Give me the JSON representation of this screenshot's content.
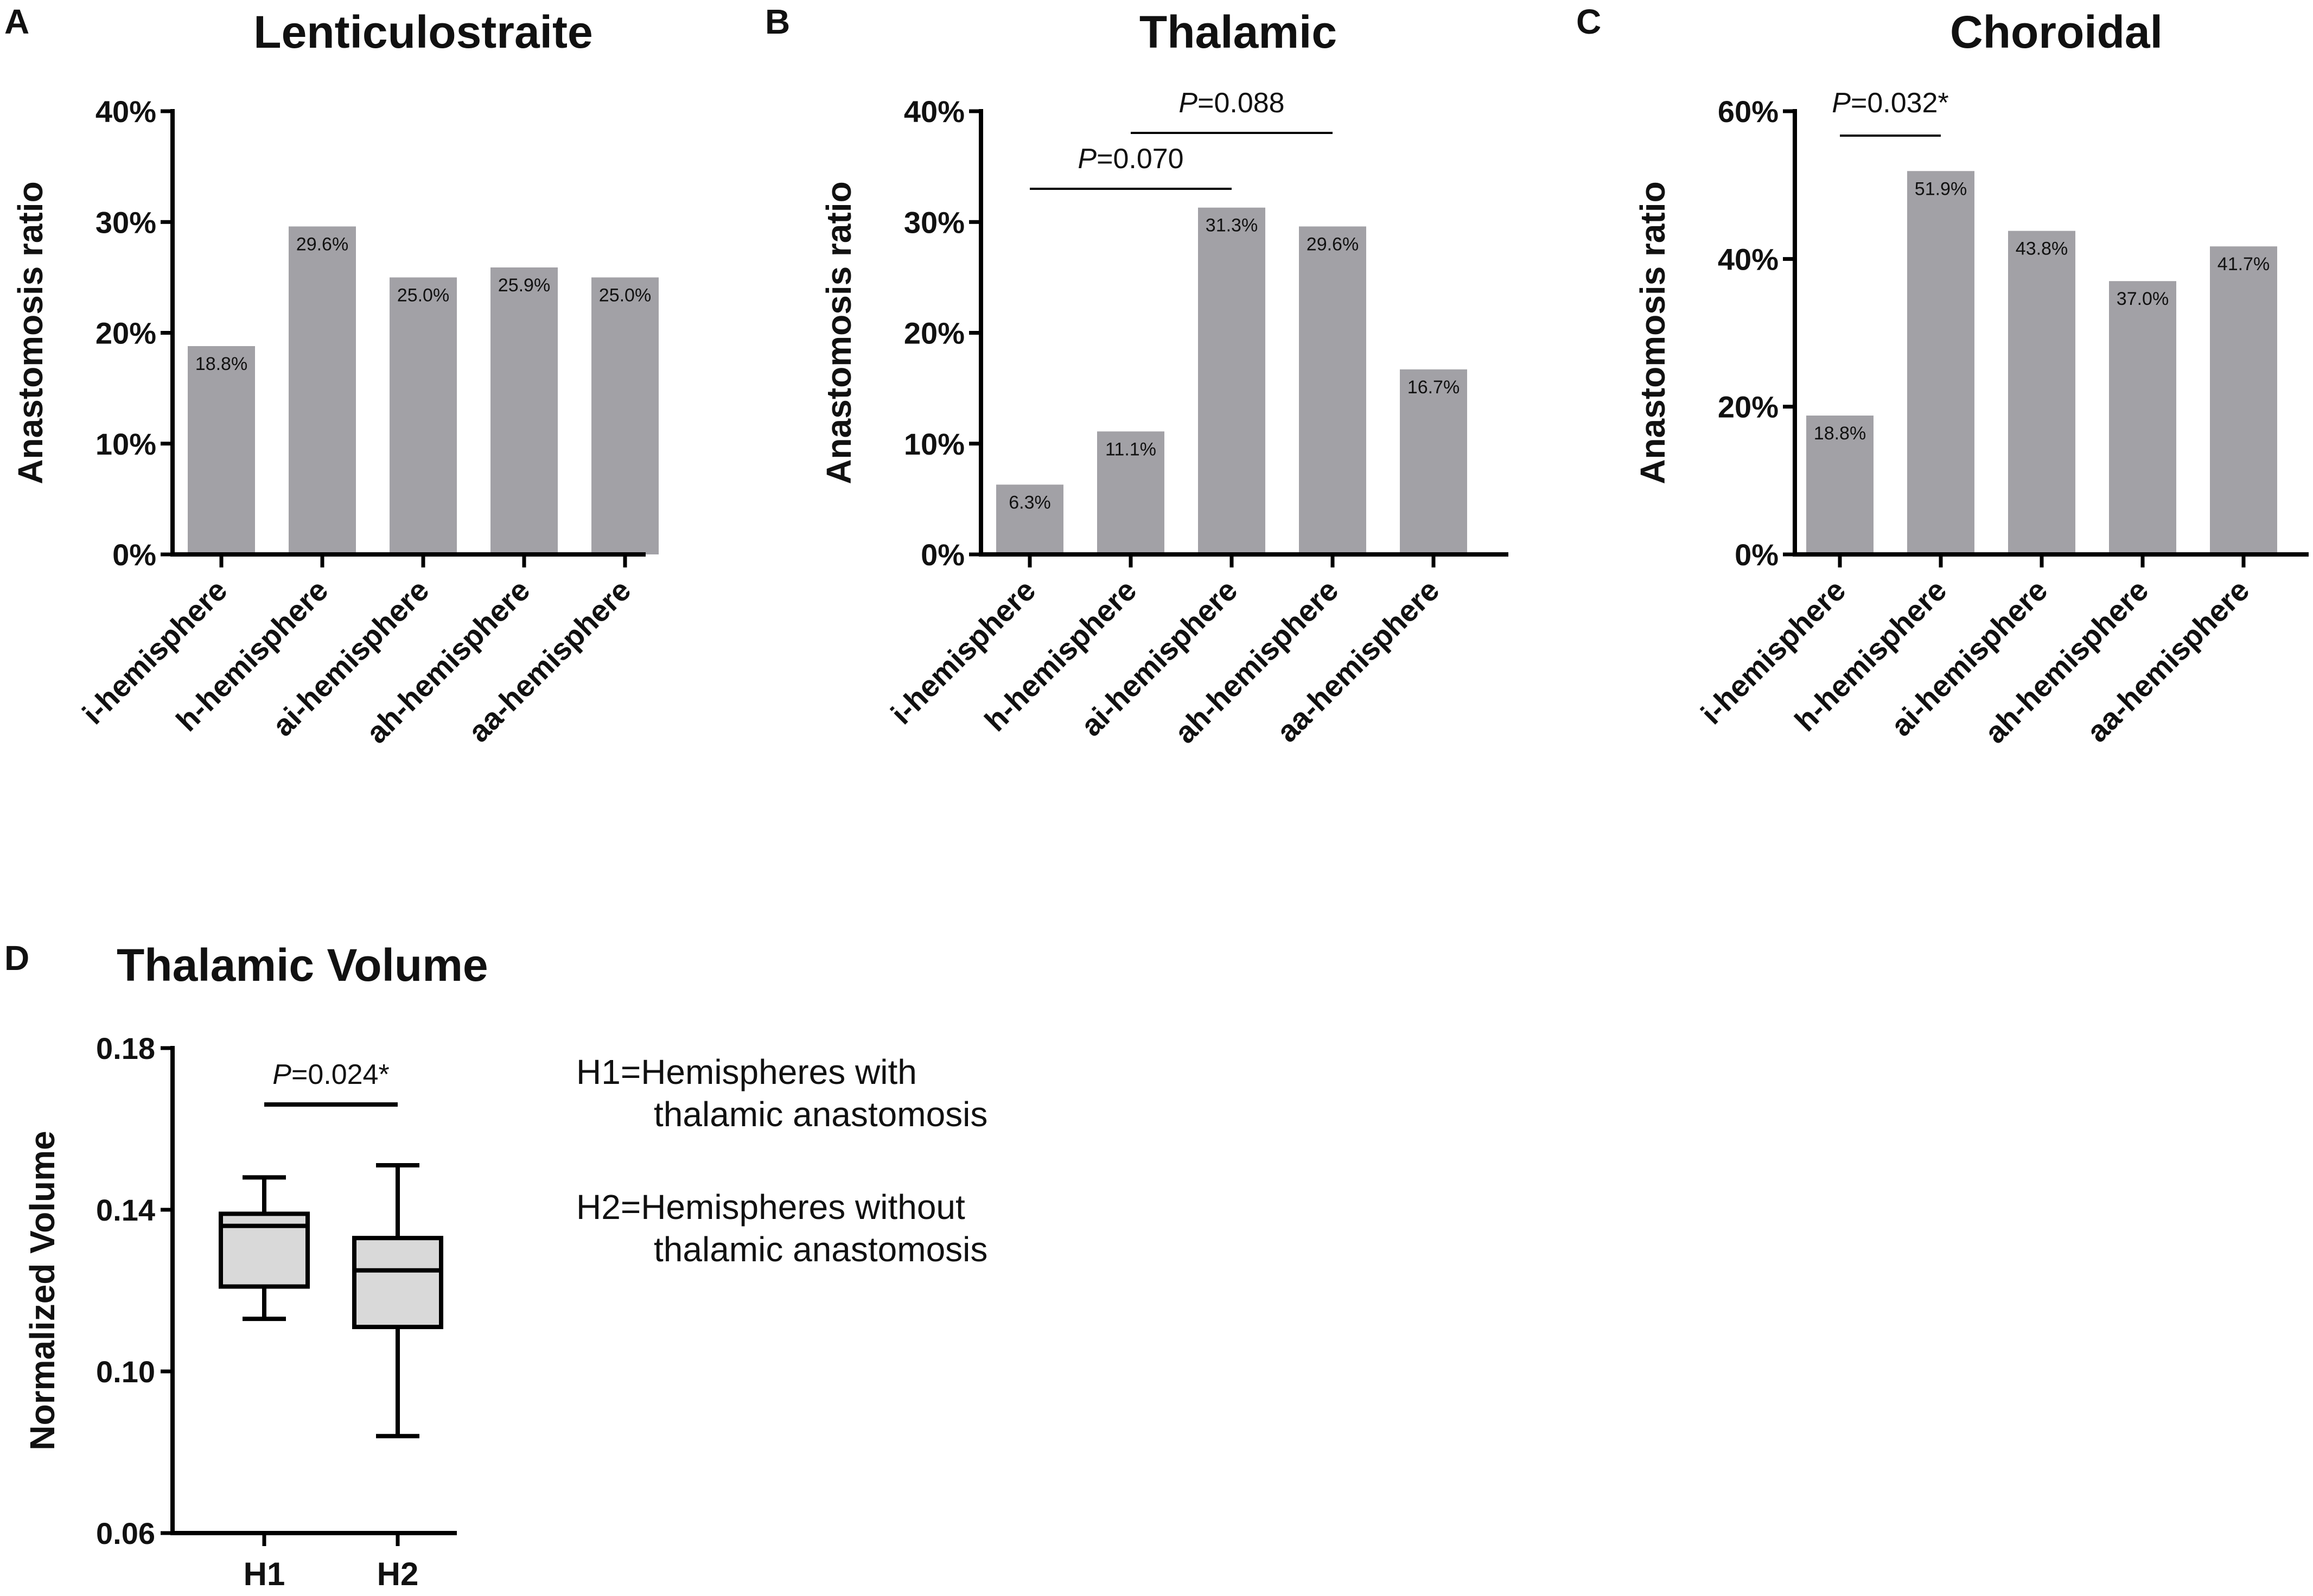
{
  "chart_data": [
    {
      "type": "bar",
      "panel": "A",
      "title": "Lenticulostraite",
      "ylabel": "Anastomosis ratio",
      "xlabel": "",
      "ylim": [
        0,
        40
      ],
      "yticks": [
        "0%",
        "10%",
        "20%",
        "30%",
        "40%"
      ],
      "categories": [
        "i-hemisphere",
        "h-hemisphere",
        "ai-hemisphere",
        "ah-hemisphere",
        "aa-hemisphere"
      ],
      "values": [
        18.8,
        29.6,
        25.0,
        25.9,
        25.0
      ],
      "value_labels": [
        "18.8%",
        "29.6%",
        "25.0%",
        "25.9%",
        "25.0%"
      ],
      "annotations": []
    },
    {
      "type": "bar",
      "panel": "B",
      "title": "Thalamic",
      "ylabel": "Anastomosis ratio",
      "xlabel": "",
      "ylim": [
        0,
        40
      ],
      "yticks": [
        "0%",
        "10%",
        "20%",
        "30%",
        "40%"
      ],
      "categories": [
        "i-hemisphere",
        "h-hemisphere",
        "ai-hemisphere",
        "ah-hemisphere",
        "aa-hemisphere"
      ],
      "values": [
        6.3,
        11.1,
        31.3,
        29.6,
        16.7
      ],
      "value_labels": [
        "6.3%",
        "11.1%",
        "31.3%",
        "29.6%",
        "16.7%"
      ],
      "annotations": [
        {
          "p_label": "P",
          "value": "=0.070",
          "from": 0,
          "to": 2
        },
        {
          "p_label": "P",
          "value": "=0.088",
          "from": 1,
          "to": 3
        }
      ]
    },
    {
      "type": "bar",
      "panel": "C",
      "title": "Choroidal",
      "ylabel": "Anastomosis ratio",
      "xlabel": "",
      "ylim": [
        0,
        60
      ],
      "yticks": [
        "0%",
        "20%",
        "40%",
        "60%"
      ],
      "categories": [
        "i-hemisphere",
        "h-hemisphere",
        "ai-hemisphere",
        "ah-hemisphere",
        "aa-hemisphere"
      ],
      "values": [
        18.8,
        51.9,
        43.8,
        37.0,
        41.7
      ],
      "value_labels": [
        "18.8%",
        "51.9%",
        "43.8%",
        "37.0%",
        "41.7%"
      ],
      "annotations": [
        {
          "p_label": "P",
          "value": "=0.032*",
          "from": 0,
          "to": 1
        }
      ]
    },
    {
      "type": "box",
      "panel": "D",
      "title": "Thalamic Volume",
      "ylabel": "Normalized Volume",
      "xlabel": "",
      "ylim": [
        0.06,
        0.18
      ],
      "yticks": [
        "0.06",
        "0.10",
        "0.14",
        "0.18"
      ],
      "categories": [
        "H1",
        "H2"
      ],
      "boxes": [
        {
          "name": "H1",
          "min": 0.113,
          "q1": 0.121,
          "median": 0.136,
          "q3": 0.139,
          "max": 0.148
        },
        {
          "name": "H2",
          "min": 0.084,
          "q1": 0.111,
          "median": 0.125,
          "q3": 0.133,
          "max": 0.151
        }
      ],
      "annotations": [
        {
          "p_label": "P",
          "value": "=0.024*",
          "from": 0,
          "to": 1
        }
      ],
      "legend": [
        {
          "line1": "H1=Hemispheres with",
          "line2": "thalamic anastomosis"
        },
        {
          "line1": "H2=Hemispheres without",
          "line2": "thalamic anastomosis"
        }
      ]
    }
  ]
}
